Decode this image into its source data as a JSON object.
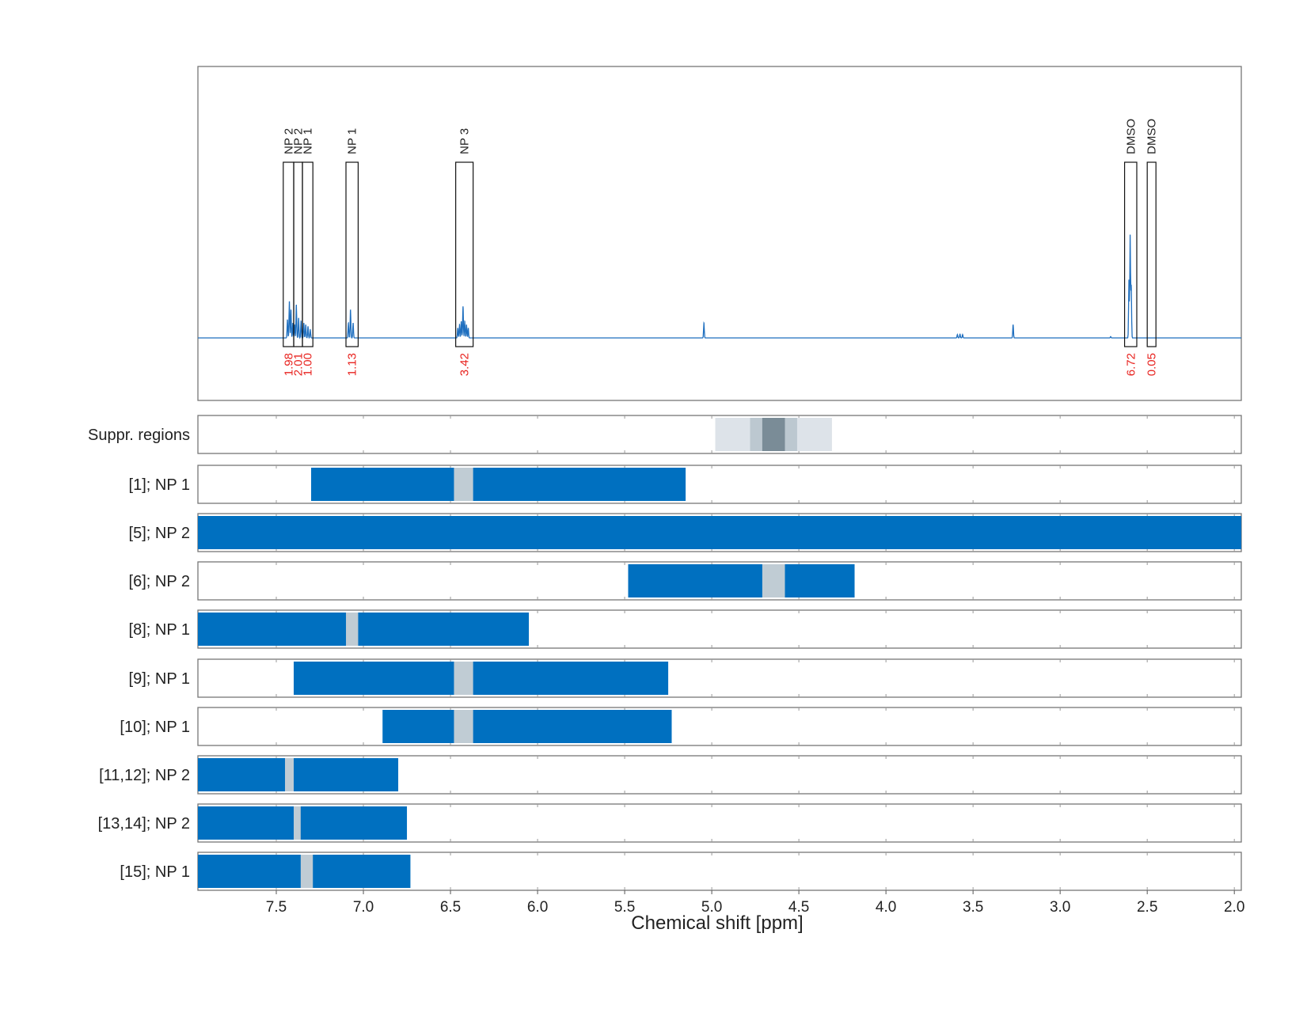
{
  "chart_data": {
    "type": "line",
    "xlabel": "Chemical shift [ppm]",
    "xlim": [
      7.95,
      1.96
    ],
    "x_direction": "reversed",
    "grid": "vertical dashed",
    "ticks": [
      {
        "value": 7.5,
        "label": "7.5"
      },
      {
        "value": 7.0,
        "label": "7.0"
      },
      {
        "value": 6.5,
        "label": "6.5"
      },
      {
        "value": 6.0,
        "label": "6.0"
      },
      {
        "value": 5.5,
        "label": "5.5"
      },
      {
        "value": 5.0,
        "label": "5.0"
      },
      {
        "value": 4.5,
        "label": "4.5"
      },
      {
        "value": 4.0,
        "label": "4.0"
      },
      {
        "value": 3.5,
        "label": "3.5"
      },
      {
        "value": 3.0,
        "label": "3.0"
      },
      {
        "value": 2.5,
        "label": "2.5"
      },
      {
        "value": 2.0,
        "label": "2.0"
      }
    ],
    "spectrum": {
      "color": "#1f6fbf",
      "baseline": 0,
      "ymax": 1.0,
      "peaks": [
        {
          "ppm": 7.436,
          "height": 0.11
        },
        {
          "ppm": 7.425,
          "height": 0.22
        },
        {
          "ppm": 7.416,
          "height": 0.17
        },
        {
          "ppm": 7.405,
          "height": 0.09
        },
        {
          "ppm": 7.395,
          "height": 0.08
        },
        {
          "ppm": 7.385,
          "height": 0.2
        },
        {
          "ppm": 7.372,
          "height": 0.12
        },
        {
          "ppm": 7.358,
          "height": 0.1
        },
        {
          "ppm": 7.342,
          "height": 0.09
        },
        {
          "ppm": 7.331,
          "height": 0.08
        },
        {
          "ppm": 7.318,
          "height": 0.07
        },
        {
          "ppm": 7.305,
          "height": 0.05
        },
        {
          "ppm": 7.086,
          "height": 0.09
        },
        {
          "ppm": 7.074,
          "height": 0.17
        },
        {
          "ppm": 7.059,
          "height": 0.09
        },
        {
          "ppm": 6.458,
          "height": 0.06
        },
        {
          "ppm": 6.448,
          "height": 0.08
        },
        {
          "ppm": 6.438,
          "height": 0.1
        },
        {
          "ppm": 6.428,
          "height": 0.19
        },
        {
          "ppm": 6.418,
          "height": 0.1
        },
        {
          "ppm": 6.408,
          "height": 0.08
        },
        {
          "ppm": 6.398,
          "height": 0.06
        },
        {
          "ppm": 5.045,
          "height": 0.09
        },
        {
          "ppm": 3.59,
          "height": 0.02
        },
        {
          "ppm": 3.575,
          "height": 0.025
        },
        {
          "ppm": 3.56,
          "height": 0.02
        },
        {
          "ppm": 3.27,
          "height": 0.08
        },
        {
          "ppm": 2.71,
          "height": 0.008
        },
        {
          "ppm": 2.605,
          "height": 0.35
        },
        {
          "ppm": 2.598,
          "height": 0.62
        },
        {
          "ppm": 2.592,
          "height": 0.32
        }
      ]
    },
    "annotations": [
      {
        "label": "NP 2",
        "integral": "1.98",
        "from": 7.46,
        "to": 7.4
      },
      {
        "label": "NP 2",
        "integral": "2.01",
        "from": 7.4,
        "to": 7.35
      },
      {
        "label": "NP 1",
        "integral": "1.00",
        "from": 7.35,
        "to": 7.29
      },
      {
        "label": "NP 1",
        "integral": "1.13",
        "from": 7.1,
        "to": 7.03
      },
      {
        "label": "NP 3",
        "integral": "3.42",
        "from": 6.47,
        "to": 6.37
      },
      {
        "label": "DMSO",
        "integral": "6.72",
        "from": 2.63,
        "to": 2.56
      },
      {
        "label": "DMSO",
        "integral": "0.05",
        "from": 2.5,
        "to": 2.45
      }
    ],
    "suppression_rows": [
      {
        "label": "Suppr. regions",
        "segments": [
          {
            "from": 4.98,
            "to": 4.31,
            "shade": "light"
          },
          {
            "from": 4.78,
            "to": 4.51,
            "shade": "medium"
          },
          {
            "from": 4.71,
            "to": 4.58,
            "shade": "dark"
          }
        ]
      }
    ],
    "rows": [
      {
        "label": "[1]; NP 1",
        "from": 7.3,
        "to": 5.15,
        "gaps": [
          {
            "from": 6.48,
            "to": 6.37
          }
        ]
      },
      {
        "label": "[5]; NP 2",
        "from": 7.95,
        "to": 1.96,
        "gaps": []
      },
      {
        "label": "[6]; NP 2",
        "from": 5.48,
        "to": 4.18,
        "gaps": [
          {
            "from": 4.71,
            "to": 4.58
          }
        ]
      },
      {
        "label": "[8]; NP 1",
        "from": 7.95,
        "to": 6.05,
        "gaps": [
          {
            "from": 7.1,
            "to": 7.03
          }
        ]
      },
      {
        "label": "[9]; NP 1",
        "from": 7.4,
        "to": 5.25,
        "gaps": [
          {
            "from": 6.48,
            "to": 6.37
          }
        ]
      },
      {
        "label": "[10]; NP 1",
        "from": 6.89,
        "to": 5.23,
        "gaps": [
          {
            "from": 6.48,
            "to": 6.37
          }
        ]
      },
      {
        "label": "[11,12]; NP 2",
        "from": 7.95,
        "to": 6.8,
        "gaps": [
          {
            "from": 7.45,
            "to": 7.4
          }
        ]
      },
      {
        "label": "[13,14]; NP 2",
        "from": 7.95,
        "to": 6.75,
        "gaps": [
          {
            "from": 7.4,
            "to": 7.36
          }
        ]
      },
      {
        "label": "[15]; NP 1",
        "from": 7.95,
        "to": 6.73,
        "gaps": [
          {
            "from": 7.36,
            "to": 7.29
          }
        ]
      }
    ],
    "colors": {
      "range_fill": "#0070c0",
      "gap_fill": "#c0ccd4",
      "suppr_light": "#dde3e9",
      "suppr_medium": "#bcc8d0",
      "suppr_dark": "#7a8c97",
      "spectrum": "#1f6fbf",
      "integral_text": "#e8231f",
      "frame": "#777777",
      "grid": "#b0b0b0"
    }
  }
}
